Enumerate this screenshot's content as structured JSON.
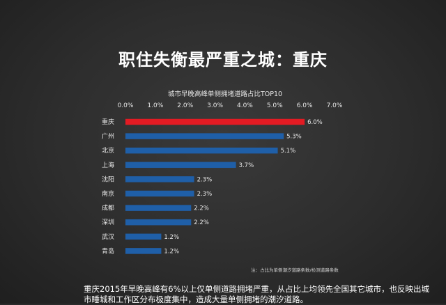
{
  "title": "职住失衡最严重之城：重庆",
  "caption": "重庆2015年早晚高峰有6%以上仅单侧道路拥堵严重，从占比上均领先全国其它城市，也反映出城市睡城和工作区分布极度集中，造成大量单侧拥堵的潮汐道路。",
  "colors": {
    "highlight": "#e31b23",
    "bar": "#1f5fa8"
  },
  "chart_data": {
    "type": "bar",
    "orientation": "horizontal",
    "title": "城市早晚高峰单侧拥堵道路占比TOP10",
    "categories": [
      "重庆",
      "广州",
      "北京",
      "上海",
      "沈阳",
      "南京",
      "成都",
      "深圳",
      "武汉",
      "青岛"
    ],
    "values": [
      6.0,
      5.3,
      5.1,
      3.7,
      2.3,
      2.3,
      2.2,
      2.2,
      1.2,
      1.2
    ],
    "value_labels": [
      "6.0%",
      "5.3%",
      "5.1%",
      "3.7%",
      "2.3%",
      "2.3%",
      "2.2%",
      "2.2%",
      "1.2%",
      "1.2%"
    ],
    "xlim": [
      0,
      7
    ],
    "x_ticks": [
      "0.0%",
      "1.0%",
      "2.0%",
      "3.0%",
      "4.0%",
      "5.0%",
      "6.0%",
      "7.0%"
    ],
    "x_axis_position": "top",
    "grid": false,
    "highlight_category": "重庆",
    "note": "注：占比为单侧潮汐道路条数/检测道路条数"
  }
}
